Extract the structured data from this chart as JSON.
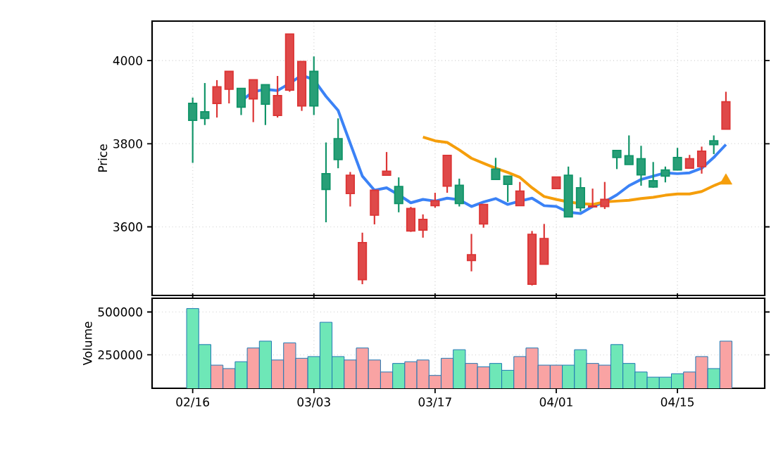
{
  "chart_data": [
    {
      "type": "candlestick",
      "ylabel": "Price",
      "categories": [
        null,
        null,
        null,
        null,
        null,
        null,
        null,
        null,
        null,
        null,
        null,
        null,
        null,
        null,
        null,
        null,
        null,
        null,
        null,
        null,
        null,
        null,
        null,
        null,
        null,
        null,
        null,
        null,
        null,
        null,
        null,
        null,
        null,
        null,
        null,
        null,
        null,
        null,
        null,
        null,
        null,
        null,
        null,
        null,
        null
      ],
      "ohlc": [
        [
          3856,
          3911,
          3754,
          3897
        ],
        [
          3861,
          3946,
          3845,
          3877
        ],
        [
          3937,
          3953,
          3863,
          3897
        ],
        [
          3974,
          3974,
          3897,
          3931
        ],
        [
          3888,
          3933,
          3869,
          3933
        ],
        [
          3954,
          3954,
          3852,
          3908
        ],
        [
          3895,
          3942,
          3845,
          3942
        ],
        [
          3916,
          3963,
          3863,
          3868
        ],
        [
          4064,
          4064,
          3925,
          3929
        ],
        [
          3998,
          3998,
          3879,
          3891
        ],
        [
          3891,
          4010,
          3869,
          3974
        ],
        [
          3690,
          3803,
          3611,
          3728
        ],
        [
          3762,
          3861,
          3741,
          3812
        ],
        [
          3724,
          3732,
          3649,
          3680
        ],
        [
          3562,
          3586,
          3462,
          3473
        ],
        [
          3688,
          3688,
          3606,
          3628
        ],
        [
          3734,
          3780,
          3724,
          3724
        ],
        [
          3656,
          3719,
          3635,
          3697
        ],
        [
          3644,
          3648,
          3588,
          3590
        ],
        [
          3618,
          3630,
          3574,
          3592
        ],
        [
          3663,
          3682,
          3646,
          3651
        ],
        [
          3772,
          3772,
          3682,
          3698
        ],
        [
          3656,
          3716,
          3649,
          3700
        ],
        [
          3533,
          3583,
          3493,
          3519
        ],
        [
          3654,
          3654,
          3598,
          3607
        ],
        [
          3714,
          3766,
          3714,
          3739
        ],
        [
          3702,
          3722,
          3660,
          3722
        ],
        [
          3686,
          3708,
          3651,
          3651
        ],
        [
          3582,
          3590,
          3459,
          3462
        ],
        [
          3572,
          3607,
          3510,
          3510
        ],
        [
          3720,
          3720,
          3692,
          3692
        ],
        [
          3624,
          3745,
          3624,
          3724
        ],
        [
          3646,
          3719,
          3637,
          3694
        ],
        [
          3650,
          3692,
          3648,
          3648
        ],
        [
          3666,
          3708,
          3643,
          3649
        ],
        [
          3767,
          3784,
          3739,
          3784
        ],
        [
          3750,
          3820,
          3750,
          3771
        ],
        [
          3725,
          3795,
          3699,
          3764
        ],
        [
          3696,
          3756,
          3694,
          3711
        ],
        [
          3722,
          3745,
          3707,
          3737
        ],
        [
          3737,
          3790,
          3737,
          3767
        ],
        [
          3764,
          3773,
          3741,
          3741
        ],
        [
          3782,
          3793,
          3728,
          3745
        ],
        [
          3798,
          3820,
          3775,
          3807
        ],
        [
          3901,
          3925,
          3835,
          3835
        ]
      ],
      "colors": [
        "#109468",
        "#109468",
        "#dc3535",
        "#dc3535",
        "#109468",
        "#dc3535",
        "#109468",
        "#dc3535",
        "#dc3535",
        "#dc3535",
        "#109468",
        "#109468",
        "#109468",
        "#dc3535",
        "#dc3535",
        "#dc3535",
        "#dc3535",
        "#109468",
        "#dc3535",
        "#dc3535",
        "#dc3535",
        "#dc3535",
        "#109468",
        "#dc3535",
        "#dc3535",
        "#109468",
        "#109468",
        "#dc3535",
        "#dc3535",
        "#dc3535",
        "#dc3535",
        "#109468",
        "#109468",
        "#dc3535",
        "#dc3535",
        "#109468",
        "#109468",
        "#109468",
        "#109468",
        "#109468",
        "#109468",
        "#dc3535",
        "#dc3535",
        "#109468",
        "#dc3535"
      ],
      "series": [
        {
          "type": "line",
          "color": "#3b82f6",
          "values": [
            null,
            null,
            null,
            null,
            3903,
            3925,
            3931,
            3928,
            3945,
            3965,
            3954,
            3914,
            3880,
            3801,
            3722,
            3688,
            3694,
            3677,
            3658,
            3666,
            3662,
            3669,
            3665,
            3649,
            3660,
            3668,
            3654,
            3662,
            3669,
            3651,
            3649,
            3635,
            3632,
            3649,
            3660,
            3677,
            3699,
            3714,
            3722,
            3730,
            3728,
            3730,
            3741,
            3767,
            3798
          ]
        },
        {
          "type": "line",
          "color": "#f59e0b",
          "values": [
            null,
            null,
            null,
            null,
            null,
            null,
            null,
            null,
            null,
            null,
            null,
            null,
            null,
            null,
            null,
            null,
            null,
            null,
            null,
            3816,
            3807,
            3803,
            3785,
            3765,
            3753,
            3741,
            3731,
            3719,
            3694,
            3673,
            3666,
            3660,
            3656,
            3654,
            3660,
            3662,
            3664,
            3668,
            3671,
            3676,
            3679,
            3679,
            3685,
            3699,
            3711
          ]
        },
        {
          "type": "scatter",
          "marker": "triangle",
          "color": "#f59e0b",
          "values": [
            null,
            null,
            null,
            null,
            null,
            null,
            null,
            null,
            null,
            null,
            null,
            null,
            null,
            null,
            null,
            null,
            null,
            null,
            null,
            null,
            null,
            null,
            null,
            null,
            null,
            null,
            null,
            null,
            null,
            null,
            null,
            null,
            null,
            null,
            null,
            null,
            null,
            null,
            null,
            null,
            null,
            null,
            null,
            null,
            3711
          ]
        }
      ],
      "ylim": [
        3435,
        4095
      ],
      "yticks": [
        3600,
        3800,
        4000
      ],
      "grid": true,
      "tick_labels": "y"
    },
    {
      "type": "bar",
      "ylabel": "Volume",
      "categories": [
        "02/16",
        null,
        null,
        null,
        null,
        null,
        null,
        null,
        null,
        null,
        "03/03",
        null,
        null,
        null,
        null,
        null,
        null,
        null,
        null,
        null,
        "03/17",
        null,
        null,
        null,
        null,
        null,
        null,
        null,
        null,
        null,
        "04/01",
        null,
        null,
        null,
        null,
        null,
        null,
        null,
        null,
        null,
        "04/15",
        null,
        null,
        null,
        null
      ],
      "values": [
        520000,
        310000,
        190000,
        170000,
        210000,
        290000,
        330000,
        220000,
        320000,
        230000,
        240000,
        440000,
        240000,
        220000,
        290000,
        220000,
        150000,
        200000,
        210000,
        220000,
        130000,
        230000,
        280000,
        200000,
        180000,
        200000,
        160000,
        240000,
        290000,
        190000,
        190000,
        190000,
        280000,
        200000,
        190000,
        310000,
        200000,
        150000,
        120000,
        120000,
        140000,
        150000,
        240000,
        170000,
        330000
      ],
      "colors": [
        "#6ee7b7",
        "#6ee7b7",
        "#f9a3a3",
        "#f9a3a3",
        "#6ee7b7",
        "#f9a3a3",
        "#6ee7b7",
        "#f9a3a3",
        "#f9a3a3",
        "#f9a3a3",
        "#6ee7b7",
        "#6ee7b7",
        "#6ee7b7",
        "#f9a3a3",
        "#f9a3a3",
        "#f9a3a3",
        "#f9a3a3",
        "#6ee7b7",
        "#f9a3a3",
        "#f9a3a3",
        "#f9a3a3",
        "#f9a3a3",
        "#6ee7b7",
        "#f9a3a3",
        "#f9a3a3",
        "#6ee7b7",
        "#6ee7b7",
        "#f9a3a3",
        "#f9a3a3",
        "#f9a3a3",
        "#f9a3a3",
        "#6ee7b7",
        "#6ee7b7",
        "#f9a3a3",
        "#f9a3a3",
        "#6ee7b7",
        "#6ee7b7",
        "#6ee7b7",
        "#6ee7b7",
        "#6ee7b7",
        "#6ee7b7",
        "#f9a3a3",
        "#f9a3a3",
        "#6ee7b7",
        "#f9a3a3"
      ],
      "ylim": [
        55000,
        580000
      ],
      "yticks": [
        250000,
        500000
      ],
      "grid": true
    }
  ]
}
